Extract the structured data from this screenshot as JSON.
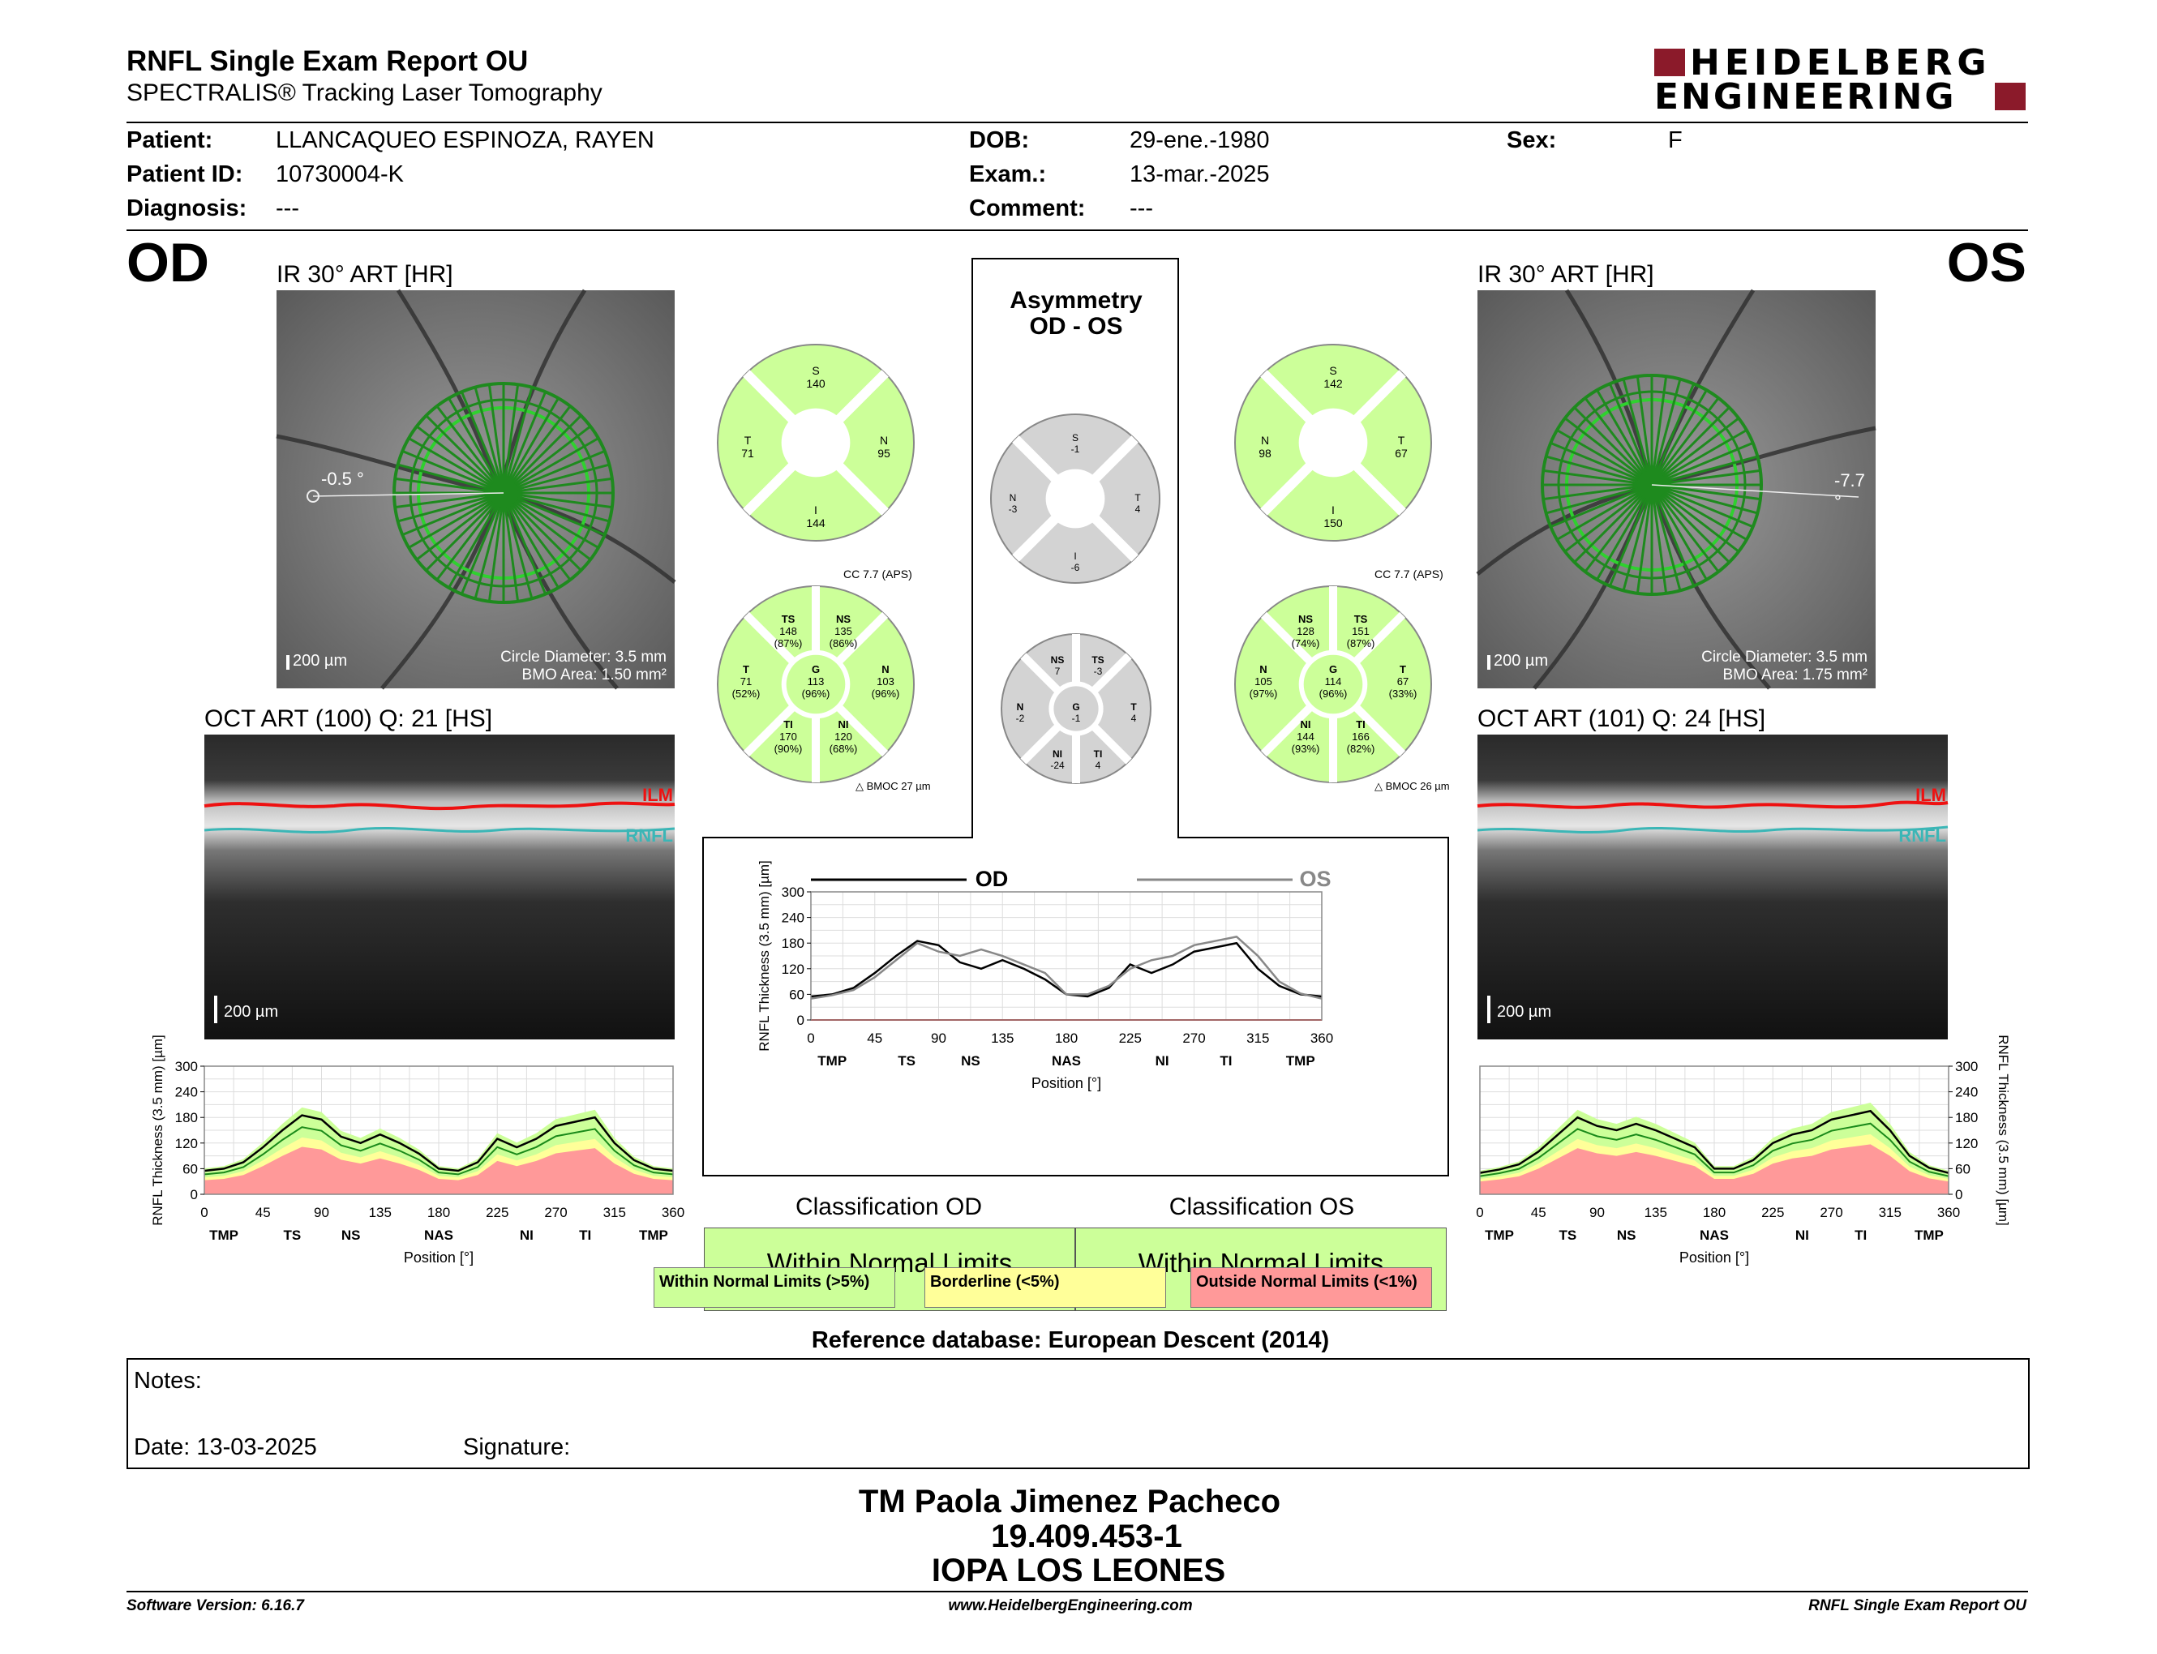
{
  "header": {
    "title": "RNFL Single Exam Report OU",
    "subtitle": "SPECTRALIS® Tracking Laser Tomography",
    "logo_line1": "HEIDELBERG",
    "logo_line2": "ENGINEERING"
  },
  "patient": {
    "patient_label": "Patient:",
    "patient_value": "LLANCAQUEO ESPINOZA, RAYEN",
    "id_label": "Patient ID:",
    "id_value": "10730004-K",
    "diagnosis_label": "Diagnosis:",
    "diagnosis_value": "---",
    "dob_label": "DOB:",
    "dob_value": "29-ene.-1980",
    "exam_label": "Exam.:",
    "exam_value": "13-mar.-2025",
    "comment_label": "Comment:",
    "comment_value": "---",
    "sex_label": "Sex:",
    "sex_value": "F"
  },
  "od": {
    "eye": "OD",
    "ir_title": "IR 30° ART [HR]",
    "angle": "-0.5 °",
    "scale": "200 µm",
    "circle_diameter": "Circle Diameter: 3.5 mm",
    "bmo_area": "BMO Area: 1.50 mm²",
    "oct_title": "OCT ART (100) Q: 21 [HS]",
    "oct_scale": "200 µm",
    "ilm": "ILM",
    "rnfl": "RNFL",
    "ring": {
      "S": "140",
      "T": "71",
      "N": "95",
      "I": "144"
    },
    "cc": "CC 7.7 (APS)",
    "bmo": "BMOC 27 µm",
    "sectors": {
      "TS": [
        "TS",
        "148",
        "(87%)"
      ],
      "NS": [
        "NS",
        "135",
        "(86%)"
      ],
      "T": [
        "T",
        "71",
        "(52%)"
      ],
      "G": [
        "G",
        "113",
        "(96%)"
      ],
      "N": [
        "N",
        "103",
        "(96%)"
      ],
      "TI": [
        "TI",
        "170",
        "(90%)"
      ],
      "NI": [
        "NI",
        "120",
        "(68%)"
      ]
    }
  },
  "os": {
    "eye": "OS",
    "ir_title": "IR 30° ART [HR]",
    "angle": "-7.7 °",
    "scale": "200 µm",
    "circle_diameter": "Circle Diameter: 3.5 mm",
    "bmo_area": "BMO Area: 1.75 mm²",
    "oct_title": "OCT ART (101) Q: 24 [HS]",
    "oct_scale": "200 µm",
    "ilm": "ILM",
    "rnfl": "RNFL",
    "ring": {
      "S": "142",
      "N": "98",
      "T": "67",
      "I": "150"
    },
    "cc": "CC 7.7 (APS)",
    "bmo": "BMOC 26 µm",
    "sectors": {
      "NS": [
        "NS",
        "128",
        "(74%)"
      ],
      "TS": [
        "TS",
        "151",
        "(87%)"
      ],
      "N": [
        "N",
        "105",
        "(97%)"
      ],
      "G": [
        "G",
        "114",
        "(96%)"
      ],
      "T": [
        "T",
        "67",
        "(33%)"
      ],
      "NI": [
        "NI",
        "144",
        "(93%)"
      ],
      "TI": [
        "TI",
        "166",
        "(82%)"
      ]
    }
  },
  "asymmetry": {
    "title1": "Asymmetry",
    "title2": "OD - OS",
    "ring": {
      "S": [
        "S",
        "-1"
      ],
      "N": [
        "N",
        "-3"
      ],
      "T": [
        "T",
        "4"
      ],
      "I": [
        "I",
        "-6"
      ]
    },
    "sectors": {
      "NS": [
        "NS",
        "7"
      ],
      "TS": [
        "TS",
        "-3"
      ],
      "N": [
        "N",
        "-2"
      ],
      "G": [
        "G",
        "-1"
      ],
      "T": [
        "T",
        "4"
      ],
      "NI": [
        "NI",
        "-24"
      ],
      "TI": [
        "TI",
        "4"
      ]
    }
  },
  "center_chart": {
    "od_legend": "OD",
    "os_legend": "OS"
  },
  "classification": {
    "od_title": "Classification OD",
    "os_title": "Classification OS",
    "od_value": "Within Normal Limits",
    "os_value": "Within Normal Limits"
  },
  "legend": {
    "wnl": "Within Normal Limits (>5%)",
    "bl": "Borderline (<5%)",
    "onl": "Outside Normal Limits (<1%)"
  },
  "reference": "Reference database: European Descent (2014)",
  "notes": {
    "label": "Notes:",
    "date": "Date: 13-03-2025",
    "signature": "Signature:"
  },
  "signature": {
    "name": "TM Paola Jimenez Pacheco",
    "rut": "19.409.453-1",
    "org": "IOPA LOS LEONES"
  },
  "footer": {
    "left": "Software Version: 6.16.7",
    "center": "www.HeidelbergEngineering.com",
    "right": "RNFL Single Exam Report OU"
  },
  "colors": {
    "normal": "#ccff99",
    "borderline": "#ffff99",
    "outside": "#ff9999",
    "asym_gray": "#d3d3d3",
    "logo_red": "#8b1a2a"
  },
  "chart_data": [
    {
      "type": "line",
      "name_ref": "od-profile",
      "ylabel": "RNFL Thickness (3.5 mm) [µm]",
      "xlabel": "Position [°]",
      "xlim": [
        0,
        360
      ],
      "ylim": [
        0,
        300
      ],
      "xticks": [
        "0",
        "45",
        "90",
        "135",
        "180",
        "225",
        "270",
        "315",
        "360"
      ],
      "yticks": [
        "0",
        "60",
        "120",
        "180",
        "240",
        "300"
      ],
      "sector_labels": [
        "TMP",
        "TS",
        "NS",
        "NAS",
        "NI",
        "TI",
        "TMP"
      ],
      "x": [
        0,
        15,
        30,
        45,
        60,
        75,
        90,
        105,
        120,
        135,
        150,
        165,
        180,
        195,
        210,
        225,
        240,
        255,
        270,
        285,
        300,
        315,
        330,
        345,
        360
      ],
      "series": [
        {
          "values": [
            55,
            60,
            75,
            110,
            150,
            185,
            175,
            135,
            120,
            140,
            120,
            95,
            60,
            55,
            75,
            130,
            110,
            130,
            160,
            170,
            180,
            120,
            80,
            60,
            55
          ]
        }
      ]
    },
    {
      "type": "line",
      "name_ref": "center-profile",
      "ylabel": "RNFL Thickness (3.5 mm) [µm]",
      "xlabel": "Position [°]",
      "xlim": [
        0,
        360
      ],
      "ylim": [
        0,
        300
      ],
      "xticks": [
        "0",
        "45",
        "90",
        "135",
        "180",
        "225",
        "270",
        "315",
        "360"
      ],
      "yticks": [
        "0",
        "60",
        "120",
        "180",
        "240",
        "300"
      ],
      "sector_labels": [
        "TMP",
        "TS",
        "NS",
        "NAS",
        "NI",
        "TI",
        "TMP"
      ],
      "x": [
        0,
        15,
        30,
        45,
        60,
        75,
        90,
        105,
        120,
        135,
        150,
        165,
        180,
        195,
        210,
        225,
        240,
        255,
        270,
        285,
        300,
        315,
        330,
        345,
        360
      ],
      "series": [
        {
          "name": "OD",
          "values": [
            55,
            60,
            75,
            110,
            150,
            185,
            175,
            135,
            120,
            140,
            120,
            95,
            60,
            55,
            75,
            130,
            110,
            130,
            160,
            170,
            180,
            120,
            80,
            60,
            55
          ]
        },
        {
          "name": "OS",
          "values": [
            50,
            58,
            70,
            100,
            140,
            180,
            160,
            150,
            165,
            150,
            130,
            110,
            60,
            60,
            80,
            120,
            140,
            150,
            175,
            185,
            195,
            150,
            90,
            62,
            50
          ]
        }
      ]
    },
    {
      "type": "line",
      "name_ref": "os-profile",
      "ylabel": "RNFL Thickness (3.5 mm) [µm]",
      "xlabel": "Position [°]",
      "xlim": [
        0,
        360
      ],
      "ylim": [
        0,
        300
      ],
      "xticks": [
        "0",
        "45",
        "90",
        "135",
        "180",
        "225",
        "270",
        "315",
        "360"
      ],
      "yticks": [
        "0",
        "60",
        "120",
        "180",
        "240",
        "300"
      ],
      "sector_labels": [
        "TMP",
        "TS",
        "NS",
        "NAS",
        "NI",
        "TI",
        "TMP"
      ],
      "x": [
        0,
        15,
        30,
        45,
        60,
        75,
        90,
        105,
        120,
        135,
        150,
        165,
        180,
        195,
        210,
        225,
        240,
        255,
        270,
        285,
        300,
        315,
        330,
        345,
        360
      ],
      "series": [
        {
          "values": [
            50,
            58,
            70,
            100,
            140,
            180,
            160,
            150,
            165,
            150,
            130,
            110,
            60,
            60,
            80,
            120,
            140,
            150,
            175,
            185,
            195,
            150,
            90,
            62,
            50
          ]
        }
      ]
    }
  ]
}
